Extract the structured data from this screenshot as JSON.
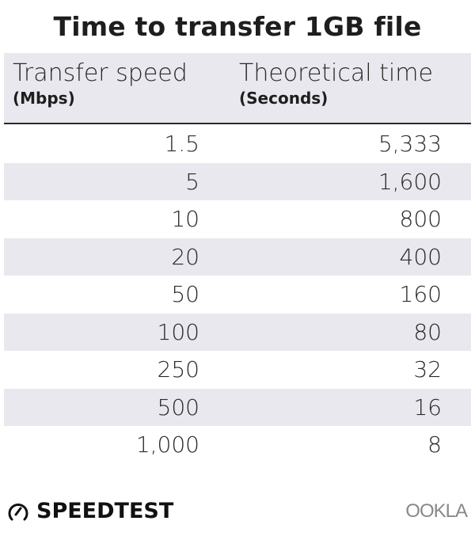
{
  "title": "Time to transfer 1GB file",
  "chart_data": {
    "type": "table",
    "title": "Time to transfer 1GB file",
    "columns": [
      {
        "label": "Transfer speed",
        "unit": "(Mbps)"
      },
      {
        "label": "Theoretical time",
        "unit": "(Seconds)"
      }
    ],
    "rows": [
      [
        "1.5",
        "5,333"
      ],
      [
        "5",
        "1,600"
      ],
      [
        "10",
        "800"
      ],
      [
        "20",
        "400"
      ],
      [
        "50",
        "160"
      ],
      [
        "100",
        "80"
      ],
      [
        "250",
        "32"
      ],
      [
        "500",
        "16"
      ],
      [
        "1,000",
        "8"
      ]
    ]
  },
  "footer": {
    "speedtest_logo": "SPEEDTEST",
    "ookla_logo": "OOKLA"
  },
  "colors": {
    "stripe": "#e9e8ee",
    "text": "#1e1e1e"
  }
}
